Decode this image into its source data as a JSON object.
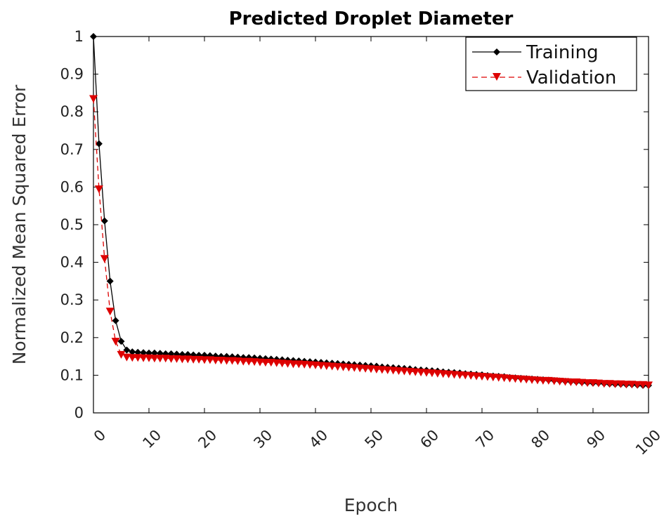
{
  "chart_data": {
    "type": "line",
    "title": "Predicted Droplet Diameter",
    "xlabel": "Epoch",
    "ylabel": "Normalized Mean Squared Error",
    "xlim": [
      0,
      100
    ],
    "ylim": [
      0,
      1
    ],
    "xticks": [
      "0",
      "10",
      "20",
      "30",
      "40",
      "50",
      "60",
      "70",
      "80",
      "90",
      "100"
    ],
    "yticks": [
      "0",
      "0.1",
      "0.2",
      "0.3",
      "0.4",
      "0.5",
      "0.6",
      "0.7",
      "0.8",
      "0.9",
      "1"
    ],
    "grid": false,
    "legend_position": "top-right",
    "series": [
      {
        "name": "Training",
        "color": "#000000",
        "line_style": "solid",
        "marker": "diamond",
        "x": [
          0,
          1,
          2,
          3,
          4,
          5,
          6,
          7,
          8,
          9,
          10,
          11,
          12,
          13,
          14,
          15,
          16,
          17,
          18,
          19,
          20,
          21,
          22,
          23,
          24,
          25,
          26,
          27,
          28,
          29,
          30,
          31,
          32,
          33,
          34,
          35,
          36,
          37,
          38,
          39,
          40,
          41,
          42,
          43,
          44,
          45,
          46,
          47,
          48,
          49,
          50,
          51,
          52,
          53,
          54,
          55,
          56,
          57,
          58,
          59,
          60,
          61,
          62,
          63,
          64,
          65,
          66,
          67,
          68,
          69,
          70,
          71,
          72,
          73,
          74,
          75,
          76,
          77,
          78,
          79,
          80,
          81,
          82,
          83,
          84,
          85,
          86,
          87,
          88,
          89,
          90,
          91,
          92,
          93,
          94,
          95,
          96,
          97,
          98,
          99,
          100
        ],
        "y": [
          1.0,
          0.715,
          0.51,
          0.35,
          0.245,
          0.19,
          0.167,
          0.162,
          0.161,
          0.16,
          0.159,
          0.159,
          0.158,
          0.157,
          0.157,
          0.156,
          0.155,
          0.155,
          0.154,
          0.153,
          0.153,
          0.152,
          0.151,
          0.15,
          0.15,
          0.149,
          0.148,
          0.147,
          0.147,
          0.146,
          0.145,
          0.144,
          0.143,
          0.142,
          0.141,
          0.14,
          0.139,
          0.138,
          0.137,
          0.136,
          0.135,
          0.134,
          0.133,
          0.132,
          0.131,
          0.13,
          0.129,
          0.128,
          0.127,
          0.126,
          0.125,
          0.124,
          0.122,
          0.121,
          0.12,
          0.119,
          0.118,
          0.117,
          0.115,
          0.114,
          0.113,
          0.112,
          0.111,
          0.109,
          0.108,
          0.107,
          0.106,
          0.104,
          0.103,
          0.102,
          0.101,
          0.099,
          0.098,
          0.097,
          0.096,
          0.094,
          0.093,
          0.092,
          0.091,
          0.09,
          0.089,
          0.088,
          0.087,
          0.086,
          0.085,
          0.084,
          0.083,
          0.082,
          0.081,
          0.08,
          0.079,
          0.079,
          0.078,
          0.077,
          0.076,
          0.076,
          0.075,
          0.075,
          0.074,
          0.073,
          0.073
        ]
      },
      {
        "name": "Validation",
        "color": "#dd0000",
        "line_style": "dashed",
        "marker": "triangle-down",
        "x": [
          0,
          1,
          2,
          3,
          4,
          5,
          6,
          7,
          8,
          9,
          10,
          11,
          12,
          13,
          14,
          15,
          16,
          17,
          18,
          19,
          20,
          21,
          22,
          23,
          24,
          25,
          26,
          27,
          28,
          29,
          30,
          31,
          32,
          33,
          34,
          35,
          36,
          37,
          38,
          39,
          40,
          41,
          42,
          43,
          44,
          45,
          46,
          47,
          48,
          49,
          50,
          51,
          52,
          53,
          54,
          55,
          56,
          57,
          58,
          59,
          60,
          61,
          62,
          63,
          64,
          65,
          66,
          67,
          68,
          69,
          70,
          71,
          72,
          73,
          74,
          75,
          76,
          77,
          78,
          79,
          80,
          81,
          82,
          83,
          84,
          85,
          86,
          87,
          88,
          89,
          90,
          91,
          92,
          93,
          94,
          95,
          96,
          97,
          98,
          99,
          100
        ],
        "y": [
          0.835,
          0.595,
          0.41,
          0.27,
          0.19,
          0.155,
          0.148,
          0.147,
          0.147,
          0.146,
          0.146,
          0.145,
          0.145,
          0.145,
          0.144,
          0.144,
          0.143,
          0.143,
          0.142,
          0.142,
          0.141,
          0.141,
          0.14,
          0.14,
          0.139,
          0.139,
          0.138,
          0.137,
          0.137,
          0.136,
          0.135,
          0.134,
          0.134,
          0.133,
          0.132,
          0.131,
          0.13,
          0.13,
          0.129,
          0.128,
          0.127,
          0.126,
          0.125,
          0.124,
          0.123,
          0.122,
          0.121,
          0.12,
          0.119,
          0.118,
          0.117,
          0.116,
          0.115,
          0.114,
          0.113,
          0.112,
          0.111,
          0.11,
          0.109,
          0.108,
          0.107,
          0.106,
          0.105,
          0.104,
          0.103,
          0.102,
          0.101,
          0.1,
          0.099,
          0.098,
          0.097,
          0.096,
          0.095,
          0.094,
          0.093,
          0.092,
          0.091,
          0.09,
          0.089,
          0.088,
          0.087,
          0.086,
          0.086,
          0.085,
          0.084,
          0.083,
          0.082,
          0.082,
          0.081,
          0.08,
          0.08,
          0.079,
          0.078,
          0.078,
          0.077,
          0.077,
          0.076,
          0.076,
          0.075,
          0.075,
          0.074
        ]
      }
    ]
  }
}
